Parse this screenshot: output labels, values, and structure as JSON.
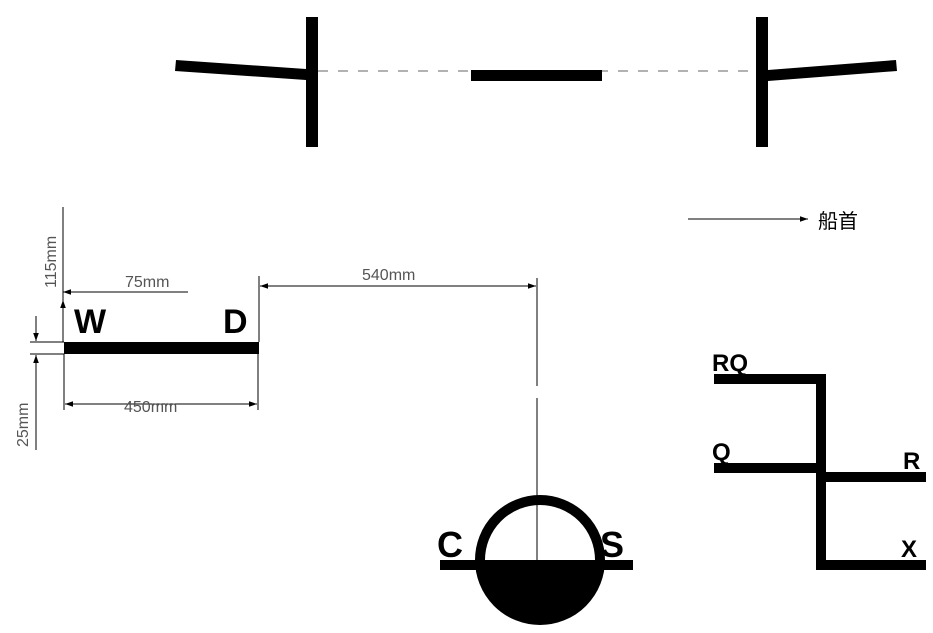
{
  "dimensions": {
    "height_top": "115mm",
    "offset_w": "75mm",
    "span": "540mm",
    "length": "450mm",
    "height_bottom": "25mm"
  },
  "direction": {
    "bow": "船首"
  },
  "labels": {
    "w": "W",
    "d": "D",
    "c": "C",
    "s": "S",
    "rq": "RQ",
    "q": "Q",
    "r": "R",
    "x": "X"
  }
}
